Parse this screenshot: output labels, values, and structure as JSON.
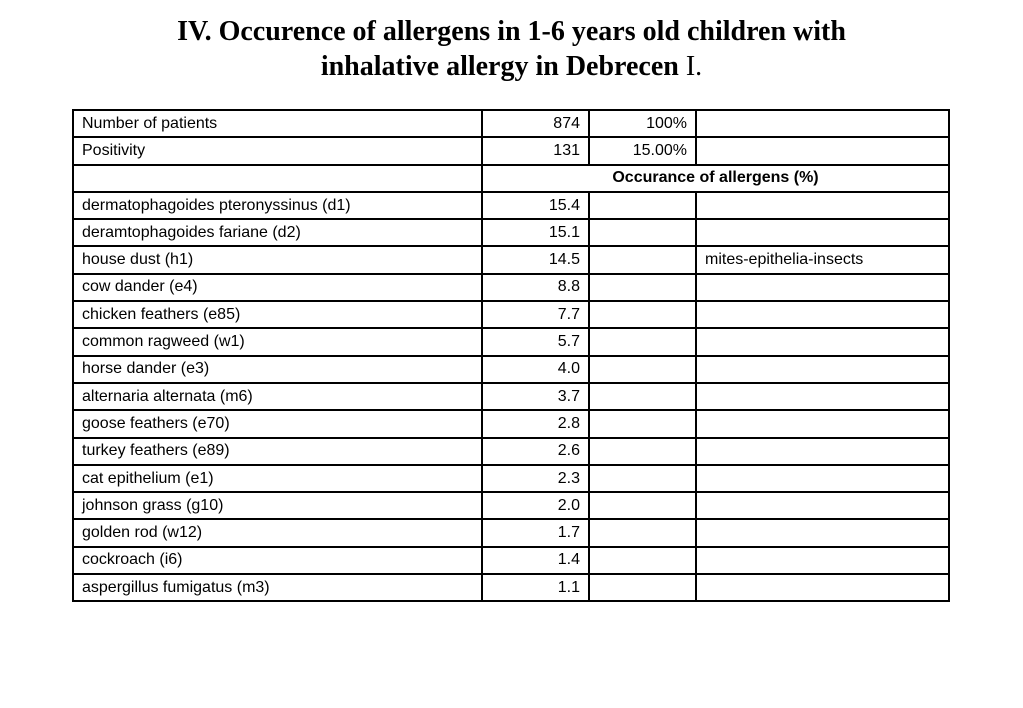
{
  "title": {
    "line1": "IV. Occurence of allergens in 1-6 years old children with",
    "line2": "inhalative allergy in Debrecen",
    "suffix": " I."
  },
  "summary_rows": [
    {
      "label": "Number of patients",
      "value": "874",
      "percent": "100%",
      "note": ""
    },
    {
      "label": "Positivity",
      "value": "131",
      "percent": "15.00%",
      "note": ""
    }
  ],
  "header": {
    "label": "",
    "occurrence": "Occurance of allergens (%)"
  },
  "allergen_rows": [
    {
      "name": "dermatophagoides pteronyssinus (d1)",
      "value": "15.4",
      "blank": "",
      "note": ""
    },
    {
      "name": "deramtophagoides fariane (d2)",
      "value": "15.1",
      "blank": "",
      "note": ""
    },
    {
      "name": "house dust (h1)",
      "value": "14.5",
      "blank": "",
      "note": "mites-epithelia-insects"
    },
    {
      "name": "cow dander (e4)",
      "value": "8.8",
      "blank": "",
      "note": ""
    },
    {
      "name": "chicken feathers (e85)",
      "value": "7.7",
      "blank": "",
      "note": ""
    },
    {
      "name": "common ragweed (w1)",
      "value": "5.7",
      "blank": "",
      "note": ""
    },
    {
      "name": "horse dander (e3)",
      "value": "4.0",
      "blank": "",
      "note": ""
    },
    {
      "name": "alternaria alternata (m6)",
      "value": "3.7",
      "blank": "",
      "note": ""
    },
    {
      "name": "goose feathers (e70)",
      "value": "2.8",
      "blank": "",
      "note": ""
    },
    {
      "name": "turkey feathers (e89)",
      "value": "2.6",
      "blank": "",
      "note": ""
    },
    {
      "name": "cat epithelium (e1)",
      "value": "2.3",
      "blank": "",
      "note": ""
    },
    {
      "name": "johnson grass (g10)",
      "value": "2.0",
      "blank": "",
      "note": ""
    },
    {
      "name": "golden rod (w12)",
      "value": "1.7",
      "blank": "",
      "note": ""
    },
    {
      "name": "cockroach (i6)",
      "value": "1.4",
      "blank": "",
      "note": ""
    },
    {
      "name": "aspergillus fumigatus (m3)",
      "value": "1.1",
      "blank": "",
      "note": ""
    }
  ]
}
